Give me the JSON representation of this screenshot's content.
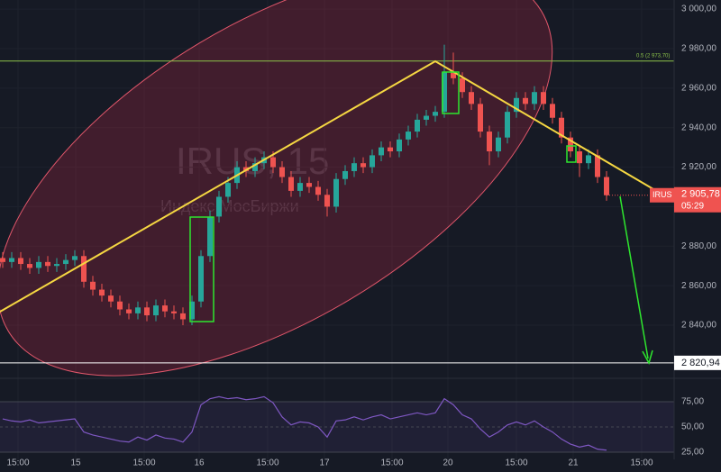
{
  "chart_data": {
    "type": "candlestick",
    "symbol": "IRUS",
    "watermark": "IRUS, 15",
    "watermark_subtitle": "Индекс МосБиржи",
    "countdown": "05:29",
    "last_price": {
      "value": 2905.78,
      "label": "2 905,78"
    },
    "up_color": "#26a69a",
    "down_color": "#ef5350",
    "grid": true,
    "xlim": [
      -0.3,
      74.5
    ],
    "ylim": [
      2815.4,
      3004.6
    ],
    "xticks": [
      {
        "value": 1.7,
        "label": "15:00"
      },
      {
        "value": 8.1,
        "label": "15"
      },
      {
        "value": 15.7,
        "label": "15:00"
      },
      {
        "value": 21.8,
        "label": "16"
      },
      {
        "value": 29.4,
        "label": "15:00"
      },
      {
        "value": 35.7,
        "label": "17"
      },
      {
        "value": 43.2,
        "label": "15:00"
      },
      {
        "value": 49.4,
        "label": "20"
      },
      {
        "value": 57.0,
        "label": "15:00"
      },
      {
        "value": 63.3,
        "label": "21"
      },
      {
        "value": 70.9,
        "label": "15:00"
      }
    ],
    "yticks": [
      {
        "value": 2840,
        "label": "2 840,00"
      },
      {
        "value": 2860,
        "label": "2 860,00"
      },
      {
        "value": 2880,
        "label": "2 880,00"
      },
      {
        "value": 2900,
        "label": "2 900,00"
      },
      {
        "value": 2920,
        "label": "2 920,00"
      },
      {
        "value": 2940,
        "label": "2 940,00"
      },
      {
        "value": 2960,
        "label": "2 960,00"
      },
      {
        "value": 2980,
        "label": "2 980,00"
      },
      {
        "value": 3000,
        "label": "3 000,00"
      }
    ],
    "levels": [
      {
        "value": 2820.94,
        "label": "2 820,94",
        "color": "#ffffff"
      },
      {
        "value": 2973.7,
        "label": "0.5 (2 973,70)",
        "color": "#8bc34a"
      }
    ],
    "open": [
      2874,
      2872,
      2874,
      2871,
      2869,
      2872,
      2870,
      2871,
      2873,
      2875,
      2862,
      2858,
      2855,
      2852,
      2848,
      2846,
      2849,
      2845,
      2850,
      2847,
      2846,
      2843,
      2852,
      2875,
      2895,
      2905,
      2912,
      2920,
      2918,
      2922,
      2925,
      2920,
      2915,
      2908,
      2912,
      2910,
      2906,
      2900,
      2914,
      2918,
      2922,
      2920,
      2926,
      2930,
      2928,
      2934,
      2938,
      2944,
      2946,
      2948,
      2968,
      2965,
      2958,
      2952,
      2938,
      2928,
      2935,
      2948,
      2955,
      2952,
      2958,
      2952,
      2945,
      2935,
      2928,
      2922,
      2926,
      2915
    ],
    "high": [
      2877,
      2877,
      2877,
      2874,
      2875,
      2875,
      2874,
      2876,
      2878,
      2878,
      2865,
      2861,
      2858,
      2855,
      2851,
      2852,
      2852,
      2853,
      2853,
      2850,
      2849,
      2855,
      2878,
      2898,
      2908,
      2915,
      2923,
      2923,
      2925,
      2928,
      2928,
      2923,
      2918,
      2915,
      2915,
      2913,
      2909,
      2917,
      2921,
      2925,
      2925,
      2929,
      2933,
      2933,
      2937,
      2941,
      2947,
      2949,
      2951,
      2982,
      2978,
      2968,
      2961,
      2955,
      2941,
      2938,
      2951,
      2958,
      2958,
      2961,
      2961,
      2955,
      2948,
      2938,
      2931,
      2929,
      2929,
      2918
    ],
    "low": [
      2869,
      2869,
      2868,
      2866,
      2866,
      2867,
      2867,
      2868,
      2870,
      2859,
      2855,
      2852,
      2849,
      2845,
      2843,
      2843,
      2842,
      2842,
      2844,
      2843,
      2840,
      2840,
      2849,
      2872,
      2892,
      2902,
      2909,
      2915,
      2915,
      2919,
      2917,
      2912,
      2905,
      2905,
      2907,
      2903,
      2895,
      2897,
      2911,
      2915,
      2917,
      2917,
      2923,
      2925,
      2925,
      2931,
      2935,
      2941,
      2943,
      2945,
      2962,
      2955,
      2949,
      2935,
      2921,
      2925,
      2932,
      2945,
      2949,
      2949,
      2949,
      2942,
      2932,
      2925,
      2915,
      2919,
      2912,
      2903
    ],
    "close": [
      2872,
      2874,
      2871,
      2869,
      2872,
      2870,
      2871,
      2873,
      2875,
      2862,
      2858,
      2855,
      2852,
      2848,
      2846,
      2849,
      2845,
      2850,
      2847,
      2846,
      2843,
      2852,
      2875,
      2895,
      2905,
      2912,
      2920,
      2918,
      2922,
      2925,
      2920,
      2915,
      2908,
      2912,
      2910,
      2906,
      2900,
      2914,
      2918,
      2922,
      2920,
      2926,
      2930,
      2928,
      2934,
      2938,
      2944,
      2946,
      2948,
      2968,
      2965,
      2958,
      2952,
      2938,
      2928,
      2935,
      2948,
      2955,
      2952,
      2958,
      2952,
      2945,
      2935,
      2928,
      2922,
      2926,
      2915,
      2905.78
    ],
    "rsi": {
      "color": "#7e57c2",
      "ylim": [
        8.9,
        89.3
      ],
      "yticks": [
        {
          "value": 25,
          "label": "25,00"
        },
        {
          "value": 50,
          "label": "50,00"
        },
        {
          "value": 75,
          "label": "75,00"
        }
      ],
      "values": [
        58,
        56,
        55,
        57,
        54,
        55,
        56,
        57,
        58,
        45,
        42,
        40,
        38,
        36,
        35,
        40,
        37,
        42,
        39,
        38,
        35,
        45,
        72,
        78,
        80,
        78,
        79,
        77,
        78,
        80,
        74,
        60,
        52,
        55,
        54,
        50,
        40,
        56,
        57,
        60,
        57,
        60,
        62,
        58,
        60,
        62,
        64,
        62,
        64,
        78,
        72,
        62,
        58,
        48,
        40,
        45,
        52,
        55,
        52,
        56,
        50,
        45,
        38,
        33,
        30,
        32,
        28,
        27
      ]
    }
  }
}
